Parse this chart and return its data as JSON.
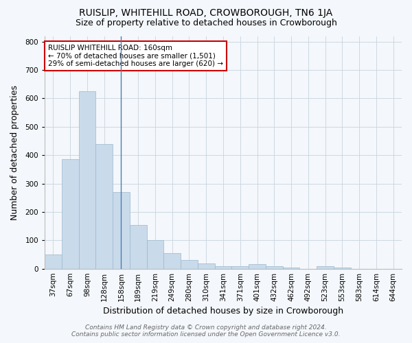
{
  "title": "RUISLIP, WHITEHILL ROAD, CROWBOROUGH, TN6 1JA",
  "subtitle": "Size of property relative to detached houses in Crowborough",
  "xlabel": "Distribution of detached houses by size in Crowborough",
  "ylabel": "Number of detached properties",
  "categories": [
    "37sqm",
    "67sqm",
    "98sqm",
    "128sqm",
    "158sqm",
    "189sqm",
    "219sqm",
    "249sqm",
    "280sqm",
    "310sqm",
    "341sqm",
    "371sqm",
    "401sqm",
    "432sqm",
    "462sqm",
    "492sqm",
    "523sqm",
    "553sqm",
    "583sqm",
    "614sqm",
    "644sqm"
  ],
  "values": [
    50,
    385,
    625,
    440,
    270,
    155,
    100,
    55,
    30,
    18,
    10,
    10,
    15,
    8,
    5,
    0,
    8,
    5,
    0,
    0,
    0
  ],
  "bar_color": "#c9daea",
  "bar_edge_color": "#9ab8cf",
  "grid_color": "#c8d4de",
  "background_color": "#f4f7fb",
  "vline_x_index": 4.0,
  "annotation_text": "RUISLIP WHITEHILL ROAD: 160sqm\n← 70% of detached houses are smaller (1,501)\n29% of semi-detached houses are larger (620) →",
  "annotation_box_color": "#ffffff",
  "annotation_box_edge": "#cc0000",
  "footer_line1": "Contains HM Land Registry data © Crown copyright and database right 2024.",
  "footer_line2": "Contains public sector information licensed under the Open Government Licence v3.0.",
  "ylim": [
    0,
    820
  ],
  "yticks": [
    0,
    100,
    200,
    300,
    400,
    500,
    600,
    700,
    800
  ],
  "title_fontsize": 10,
  "subtitle_fontsize": 9,
  "axis_label_fontsize": 9,
  "tick_fontsize": 7.5,
  "footer_fontsize": 6.5
}
